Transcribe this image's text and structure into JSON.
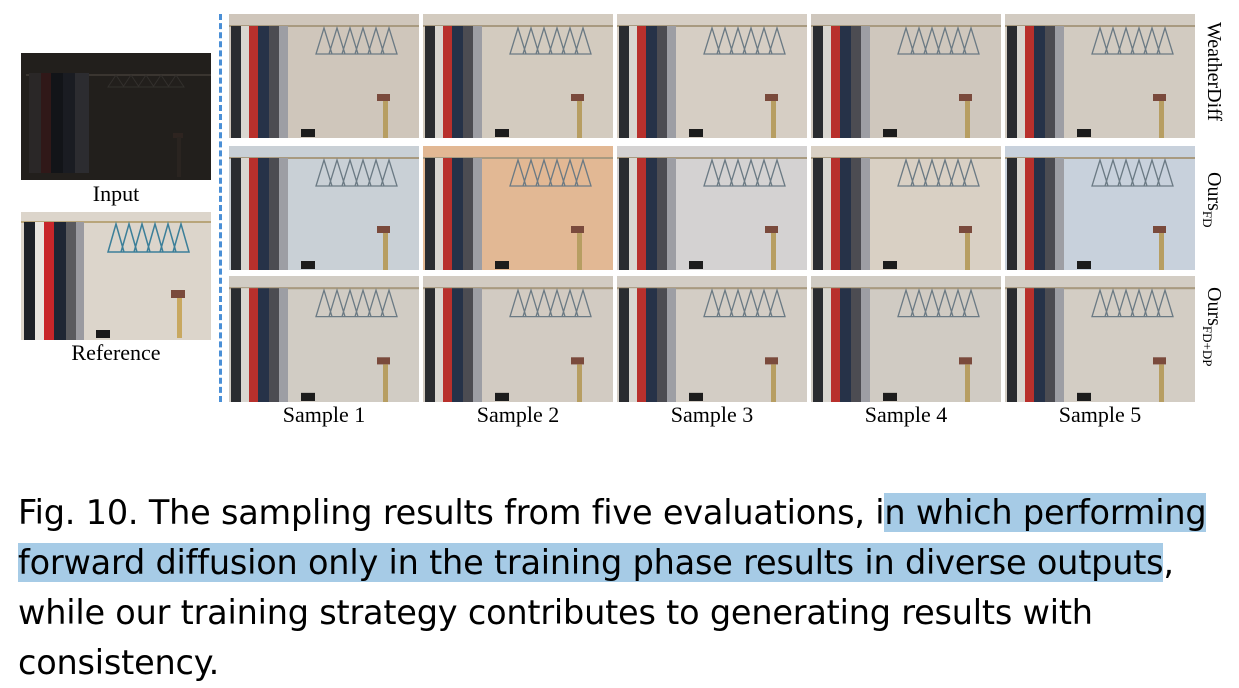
{
  "left": {
    "input_label": "Input",
    "reference_label": "Reference"
  },
  "rows": [
    {
      "label": "WeatherDiff",
      "sub": ""
    },
    {
      "label": "Ours",
      "sub": "FD"
    },
    {
      "label": "Ours",
      "sub": "FD+DP"
    }
  ],
  "columns": [
    "Sample 1",
    "Sample 2",
    "Sample 3",
    "Sample 4",
    "Sample 5"
  ],
  "grid_tints": [
    [
      "#cfc6bb",
      "#d3cbbf",
      "#d6cec4",
      "#cfc7bd",
      "#d2cbc1"
    ],
    [
      "#c9d0d6",
      "#e2b894",
      "#d4d2d2",
      "#d9d0c4",
      "#c8d1dc"
    ],
    [
      "#d1ccc4",
      "#d2cbc2",
      "#d3cdc5",
      "#d0cbc3",
      "#d3cdc4"
    ]
  ],
  "caption": {
    "prefix": "Fig. 10.  The sampling results from five evaluations, i",
    "highlight": "n which performing forward diffusion only in the training phase results in diverse outputs",
    "suffix": ", while our training strategy contributes to generating results with consistency."
  }
}
